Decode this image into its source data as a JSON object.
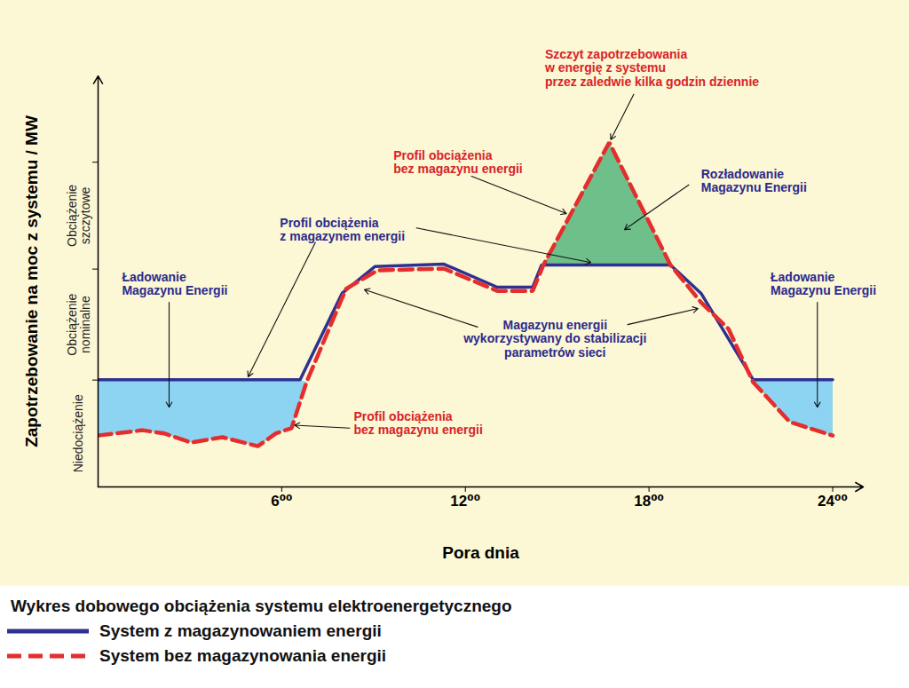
{
  "chart_data": {
    "type": "line",
    "title": "Wykres dobowego obciążenia systemu elektroenergetycznego",
    "x_label": "Pora dnia",
    "y_label": "Zapotrzebowanie na moc z systemu / MW",
    "xlim": [
      0,
      25
    ],
    "ylim": [
      0,
      100
    ],
    "xticks": [
      {
        "value": 6,
        "label": "6⁰⁰"
      },
      {
        "value": 12,
        "label": "12⁰⁰"
      },
      {
        "value": 18,
        "label": "18⁰⁰"
      },
      {
        "value": 24,
        "label": "24⁰⁰"
      }
    ],
    "yticks": [
      26,
      53,
      79
    ],
    "tick_labels": "x",
    "grid": false,
    "legend": "bottom",
    "series": [
      {
        "name": "System z magazynowaniem energii",
        "color": "#2e3192",
        "line_style": "solid",
        "x": [
          0,
          6.6,
          7.97,
          9.04,
          11.3,
          13.04,
          14.2,
          14.49,
          18.7,
          19.7,
          21.4,
          24
        ],
        "values": [
          26.1,
          26.1,
          47.1,
          53.6,
          54.2,
          48.6,
          48.6,
          54.0,
          54.0,
          47.1,
          26.1,
          26.1
        ]
      },
      {
        "name": "System bez magazynowania energii",
        "color": "#e52d2d",
        "line_style": "dashed",
        "x": [
          0,
          1.45,
          2.17,
          3.04,
          4.06,
          5.22,
          5.8,
          6.32,
          6.81,
          8.1,
          9.13,
          11.3,
          13.04,
          14.2,
          14.55,
          16.7,
          18.7,
          19.7,
          20.6,
          21.4,
          22.6,
          24
        ],
        "values": [
          12.5,
          13.8,
          13.0,
          10.8,
          12.1,
          9.9,
          13.0,
          14.3,
          25.5,
          48.2,
          52.7,
          53.1,
          47.7,
          47.7,
          54.0,
          83.8,
          54.0,
          44.9,
          38.4,
          25.5,
          15.8,
          12.5
        ]
      }
    ],
    "bands": [
      {
        "label": "Niedociążenie",
        "from": 0,
        "to": 26
      },
      {
        "label": "Obciążenie\nnominalne",
        "from": 26,
        "to": 53
      },
      {
        "label": "Obciążenie\nszczytowe",
        "from": 53,
        "to": 79
      }
    ],
    "fill_regions": [
      {
        "color": "#8dd4f2",
        "from": 0,
        "to": 6.81
      },
      {
        "color": "#6fbf8b",
        "from": 14.49,
        "to": 18.7
      },
      {
        "color": "#8dd4f2",
        "from": 21.4,
        "to": 24
      }
    ],
    "annotations": [
      {
        "text": "Szczyt zapotrzebowania\nw energię z systemu\nprzez zaledwie kilka godzin dziennie",
        "color": "#d8232a"
      },
      {
        "text": "Profil obciążenia\nbez magazynu energii",
        "color": "#d8232a"
      },
      {
        "text": "Profil obciążenia\nz magazynem energii",
        "color": "#2b2a8c"
      },
      {
        "text": "Rozładowanie\nMagazynu Energii",
        "color": "#2b2a8c"
      },
      {
        "text": "Ładowanie\nMagazynu Energii",
        "color": "#2b2a8c"
      },
      {
        "text": "Ładowanie\nMagazynu Energii",
        "color": "#2b2a8c"
      },
      {
        "text": "Magazynu energii\nwykorzystywany do stabilizacji\nparametrów sieci",
        "color": "#2b2a8c"
      },
      {
        "text": "Profil obciążenia\nbez magazynu energii",
        "color": "#d8232a"
      }
    ]
  }
}
